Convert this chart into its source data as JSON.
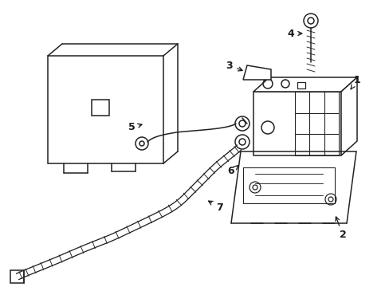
{
  "background_color": "#ffffff",
  "line_color": "#222222",
  "line_width": 1.1,
  "figsize": [
    4.89,
    3.6
  ],
  "dpi": 100
}
